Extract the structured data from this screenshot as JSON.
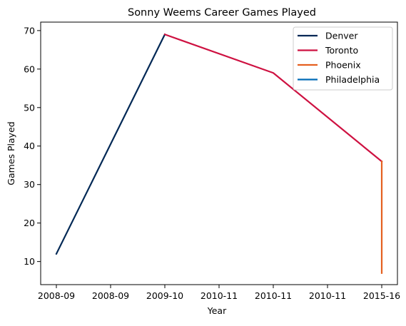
{
  "chart_data": {
    "type": "line",
    "title": "Sonny Weems Career Games Played",
    "xlabel": "Year",
    "ylabel": "Games Played",
    "x_tick_labels": [
      "2008-09",
      "2008-09",
      "2009-10",
      "2010-11",
      "2010-11",
      "2010-11",
      "2015-16"
    ],
    "y_ticks": [
      10,
      20,
      30,
      40,
      50,
      60,
      70
    ],
    "ylim": [
      4,
      72.2
    ],
    "grid": false,
    "legend_position": "top-right",
    "series": [
      {
        "name": "Denver",
        "color": "#002855",
        "points": [
          {
            "x": "2008-09",
            "y": 12
          },
          {
            "x": "2009-10",
            "y": 69
          }
        ]
      },
      {
        "name": "Toronto",
        "color": "#CE1141",
        "points": [
          {
            "x": "2009-10",
            "y": 69
          },
          {
            "x": "2010-11",
            "y": 59
          },
          {
            "x": "2015-16",
            "y": 36
          }
        ]
      },
      {
        "name": "Phoenix",
        "color": "#E56020",
        "points": [
          {
            "x": "2015-16",
            "y": 36
          },
          {
            "x": "2015-16",
            "y": 7
          }
        ]
      },
      {
        "name": "Philadelphia",
        "color": "#006BB6",
        "points": [
          {
            "x": "2015-16",
            "y": 7
          }
        ]
      }
    ]
  }
}
